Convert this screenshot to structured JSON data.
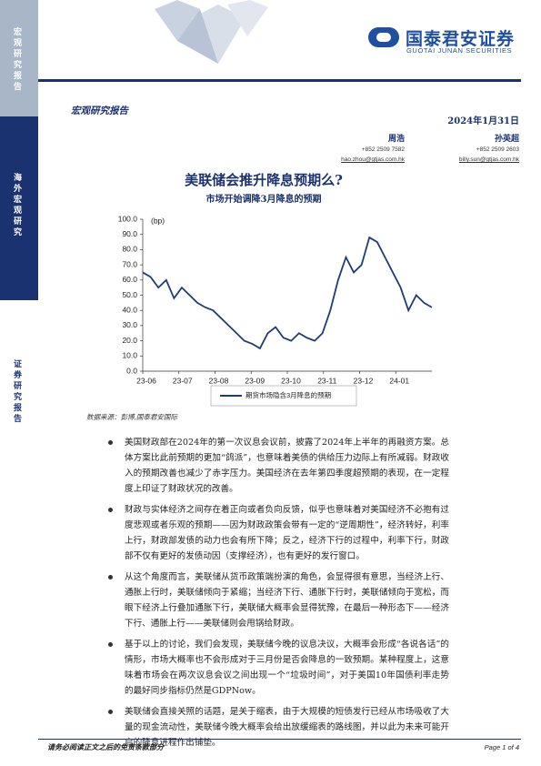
{
  "sidebar": {
    "top": "宏观研究报告",
    "middle": "海外宏观研究",
    "bottom": "证券研究报告"
  },
  "header": {
    "logo": "国泰君安证券",
    "logo_en": "GUOTAI JUNAN SECURITIES",
    "report_type": "宏观研究报告",
    "date": "2024年1月31日"
  },
  "authors": [
    {
      "name": "周浩",
      "phone": "+852 2509 7582",
      "email": "hao.zhou@gtjas.com.hk"
    },
    {
      "name": "孙英超",
      "phone": "+852 2509 2603",
      "email": "billy.sun@gtjas.com.hk"
    }
  ],
  "title": "美联储会推升降息预期么?",
  "subtitle": "市场开始调降3月降息的预期",
  "chart_data": {
    "type": "line",
    "unit": "(bp)",
    "xticks": [
      "23-06",
      "23-07",
      "23-08",
      "23-09",
      "23-10",
      "23-11",
      "23-12",
      "24-01"
    ],
    "series": [
      {
        "name": "期货市场隐含3月降息的预期",
        "color": "#1f3c7a",
        "values": [
          65,
          62,
          55,
          60,
          48,
          55,
          50,
          45,
          42,
          40,
          35,
          30,
          25,
          20,
          18,
          15,
          25,
          29,
          22,
          20,
          25,
          22,
          20,
          25,
          40,
          60,
          75,
          65,
          70,
          88,
          85,
          75,
          65,
          55,
          40,
          50,
          45,
          42
        ]
      }
    ],
    "ylim": [
      0,
      100
    ],
    "yticks": [
      {
        "value": 0,
        "label": "0.0"
      },
      {
        "value": 10,
        "label": "10.0"
      },
      {
        "value": 20,
        "label": "20.0"
      },
      {
        "value": 30,
        "label": "30.0"
      },
      {
        "value": 40,
        "label": "40.0"
      },
      {
        "value": 50,
        "label": "50.0"
      },
      {
        "value": 60,
        "label": "60.0"
      },
      {
        "value": 70,
        "label": "70.0"
      },
      {
        "value": 80,
        "label": "80.0"
      },
      {
        "value": 90,
        "label": "90.0"
      },
      {
        "value": 100,
        "label": "100.0"
      }
    ]
  },
  "source": "数据来源：彭博,国泰君安国际",
  "bullets": [
    "美国财政部在2024年的第一次议息会议前，披露了2024年上半年的再融资方案。总体方案比此前预期的更加“鸽派”，也意味着美债的供给压力边际上有所减弱。财政收入的预期改善也减少了赤字压力。美国经济在去年第四季度超预期的表现，在一定程度上印证了财政状况的改善。",
    "财政与实体经济之间存在着正向或者负向反馈，似乎也意味着对美国经济不必抱有过度悲观或者乐观的预期——因为财政政策会带有一定的“逆周期性”，经济转好，利率上行，财政部发债的动力也会有所下降；反之，经济下行的过程中，利率下行，财政部不仅有更好的发债动因（支撑经济），也有更好的发行窗口。",
    "从这个角度而言，美联储从货币政策端扮演的角色，会显得很有意思，当经济上行、通胀上行时，美联储倾向于紧缩；当经济下行、通胀下行时，美联储倾向于宽松，而眼下经济上行叠加通胀下行，美联储大概率会显得犹豫，在最后一种形态下——经济下行、通胀上行——美联储则会甩锅给财政。",
    "基于以上的讨论，我们会发现，美联储今晚的议息决议，大概率会形成“各说各话”的情形，市场大概率也不会形成对于三月份是否会降息的一致预期。某种程度上，这意味着市场会在两次议息会议之间出现一个“垃圾时间”，对于美国10年国债利率走势的最好同步指标仍然是GDPNow。",
    "美联储会直接关照的话题，是关于缩表，由于大规模的短债发行已经从市场吸收了大量的现金流动性，美联储今晚大概率会给出放缓缩表的路线图，并以此为未来可能开启的降息进程作出铺垫。"
  ],
  "footer": {
    "disclaimer": "请务必阅读正文之后的免责条款部分",
    "page": "Page 1 of 4"
  }
}
